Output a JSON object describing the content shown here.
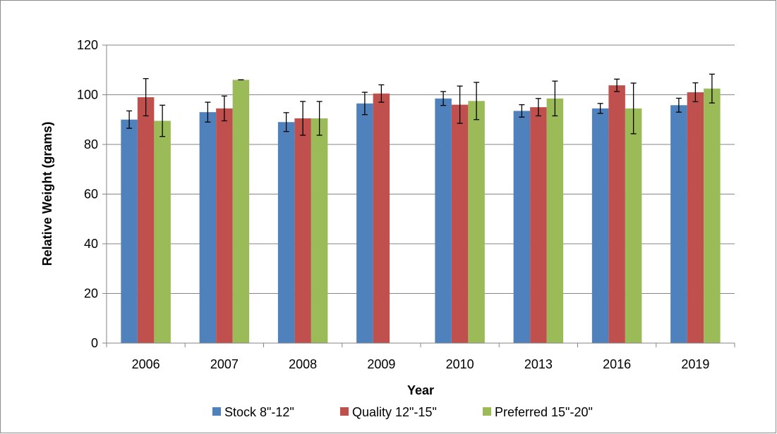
{
  "chart_data": {
    "type": "bar",
    "title": "",
    "xlabel": "Year",
    "ylabel": "Relative Weight (grams)",
    "ylim": [
      0,
      120
    ],
    "yticks": [
      "0",
      "20",
      "40",
      "60",
      "80",
      "100",
      "120"
    ],
    "categories": [
      "2006",
      "2007",
      "2008",
      "2009",
      "2010",
      "2013",
      "2016",
      "2019"
    ],
    "grid": true,
    "legend_position": "bottom",
    "series": [
      {
        "name": "Stock 8\"-12\"",
        "color": "#4F81BD",
        "values": [
          90,
          93,
          89,
          96.5,
          98.5,
          93.5,
          94.5,
          95.8
        ],
        "errors": [
          3.5,
          4,
          3.8,
          4.5,
          2.8,
          2.5,
          2,
          2.8
        ]
      },
      {
        "name": "Quality 12\"-15\"",
        "color": "#C0504D",
        "values": [
          99,
          94.5,
          90.5,
          100.5,
          96,
          95,
          103.8,
          101
        ],
        "errors": [
          7.5,
          5,
          6.8,
          3.5,
          7.5,
          3.5,
          2.5,
          3.8
        ]
      },
      {
        "name": "Preferred 15\"-20\"",
        "color": "#9BBB59",
        "values": [
          89.5,
          106,
          90.5,
          null,
          97.5,
          98.5,
          94.5,
          102.5
        ],
        "errors": [
          6.3,
          0,
          6.8,
          null,
          7.5,
          7,
          10.2,
          5.8
        ]
      }
    ]
  }
}
